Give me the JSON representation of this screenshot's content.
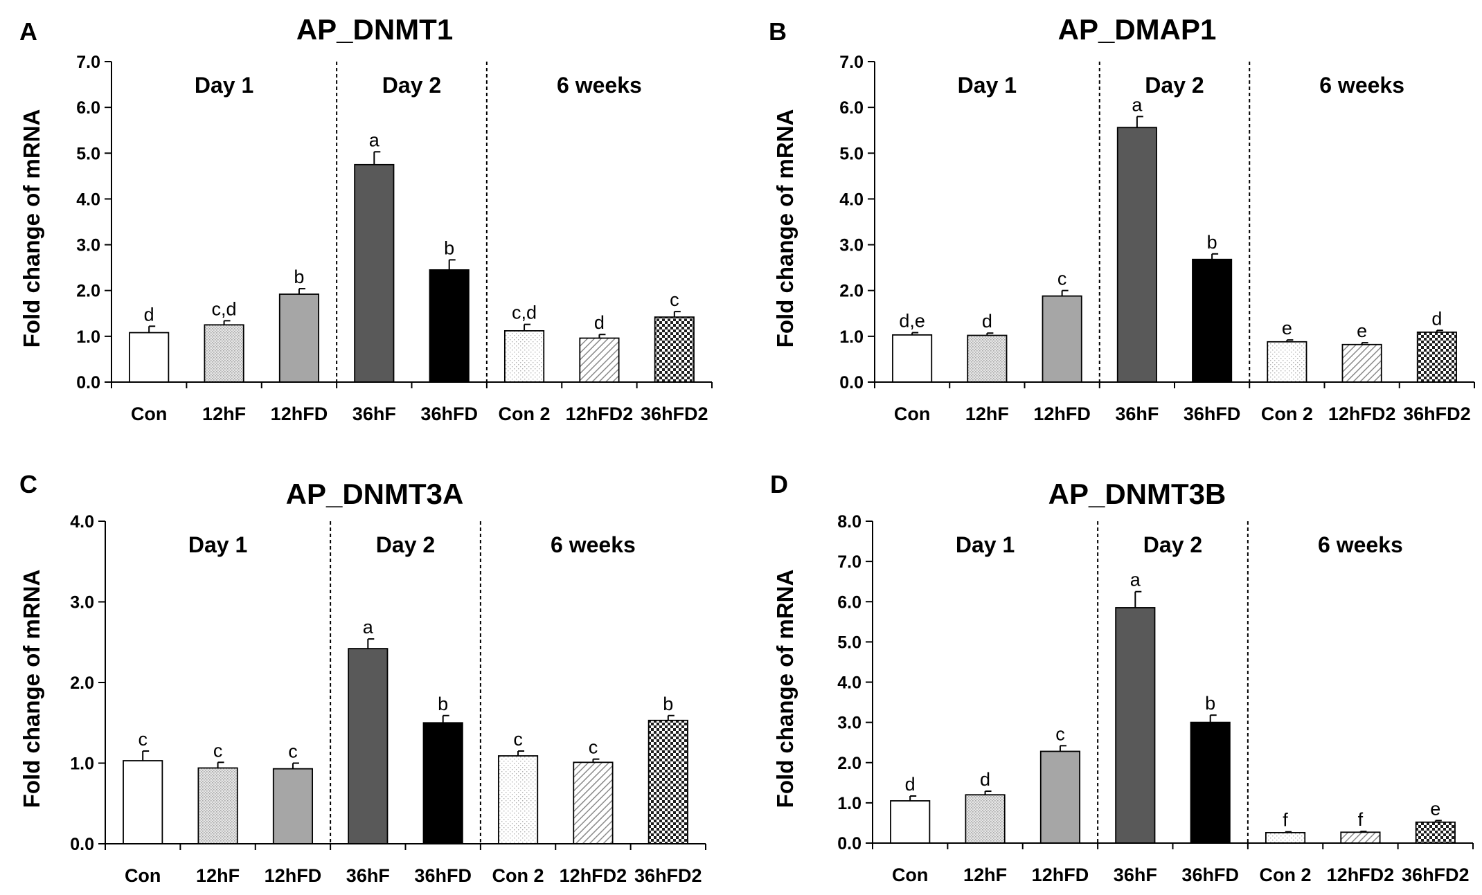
{
  "figure": {
    "categories": [
      "Con",
      "12hF",
      "12hFD",
      "36hF",
      "36hFD",
      "Con 2",
      "12hFD2",
      "36hFD2"
    ],
    "phases": [
      {
        "label": "Day 1",
        "from": 0,
        "to": 2
      },
      {
        "label": "Day 2",
        "from": 3,
        "to": 4
      },
      {
        "label": "6 weeks",
        "from": 5,
        "to": 7
      }
    ],
    "ylabel": "Fold change of mRNA",
    "patterns": [
      "white",
      "light-dots",
      "medium-gray",
      "dark-gray",
      "black",
      "sparse-dots",
      "diagonal-hatch",
      "checker"
    ]
  },
  "chart_data": [
    {
      "type": "bar",
      "panel": "A",
      "title": "AP_DNMT1",
      "ylabel": "Fold change of mRNA",
      "ylim": [
        0,
        7
      ],
      "yticks": [
        0,
        1,
        2,
        3,
        4,
        5,
        6,
        7
      ],
      "ytick_labels": [
        "0.0",
        "1.0",
        "2.0",
        "3.0",
        "4.0",
        "5.0",
        "6.0",
        "7.0"
      ],
      "categories": [
        "Con",
        "12hF",
        "12hFD",
        "36hF",
        "36hFD",
        "Con 2",
        "12hFD2",
        "36hFD2"
      ],
      "values": [
        1.08,
        1.25,
        1.92,
        4.75,
        2.45,
        1.12,
        0.96,
        1.42
      ],
      "errors": [
        0.14,
        0.09,
        0.12,
        0.28,
        0.22,
        0.14,
        0.08,
        0.12
      ],
      "labels": [
        "d",
        "c,d",
        "b",
        "a",
        "b",
        "c,d",
        "d",
        "c"
      ]
    },
    {
      "type": "bar",
      "panel": "B",
      "title": "AP_DMAP1",
      "ylabel": "Fold change of mRNA",
      "ylim": [
        0,
        7
      ],
      "yticks": [
        0,
        1,
        2,
        3,
        4,
        5,
        6,
        7
      ],
      "ytick_labels": [
        "0.0",
        "1.0",
        "2.0",
        "3.0",
        "4.0",
        "5.0",
        "6.0",
        "7.0"
      ],
      "categories": [
        "Con",
        "12hF",
        "12hFD",
        "36hF",
        "36hFD",
        "Con 2",
        "12hFD2",
        "36hFD2"
      ],
      "values": [
        1.03,
        1.02,
        1.88,
        5.56,
        2.68,
        0.88,
        0.82,
        1.09
      ],
      "errors": [
        0.05,
        0.05,
        0.12,
        0.24,
        0.12,
        0.04,
        0.04,
        0.04
      ],
      "labels": [
        "d,e",
        "d",
        "c",
        "a",
        "b",
        "e",
        "e",
        "d"
      ]
    },
    {
      "type": "bar",
      "panel": "C",
      "title": "AP_DNMT3A",
      "ylabel": "Fold change of mRNA",
      "ylim": [
        0,
        4
      ],
      "yticks": [
        0,
        1,
        2,
        3,
        4
      ],
      "ytick_labels": [
        "0.0",
        "1.0",
        "2.0",
        "3.0",
        "4.0"
      ],
      "categories": [
        "Con",
        "12hF",
        "12hFD",
        "36hF",
        "36hFD",
        "Con 2",
        "12hFD2",
        "36hFD2"
      ],
      "values": [
        1.03,
        0.94,
        0.93,
        2.42,
        1.5,
        1.09,
        1.01,
        1.53
      ],
      "errors": [
        0.12,
        0.07,
        0.07,
        0.12,
        0.09,
        0.06,
        0.04,
        0.06
      ],
      "labels": [
        "c",
        "c",
        "c",
        "a",
        "b",
        "c",
        "c",
        "b"
      ]
    },
    {
      "type": "bar",
      "panel": "D",
      "title": "AP_DNMT3B",
      "ylabel": "Fold change of mRNA",
      "ylim": [
        0,
        8
      ],
      "yticks": [
        0,
        1,
        2,
        3,
        4,
        5,
        6,
        7,
        8
      ],
      "ytick_labels": [
        "0.0",
        "1.0",
        "2.0",
        "3.0",
        "4.0",
        "5.0",
        "6.0",
        "7.0",
        "8.0"
      ],
      "categories": [
        "Con",
        "12hF",
        "12hFD",
        "36hF",
        "36hFD",
        "Con 2",
        "12hFD2",
        "36hFD2"
      ],
      "values": [
        1.05,
        1.2,
        2.28,
        5.85,
        3.0,
        0.26,
        0.27,
        0.52
      ],
      "errors": [
        0.12,
        0.09,
        0.14,
        0.4,
        0.18,
        0.02,
        0.02,
        0.04
      ],
      "labels": [
        "d",
        "d",
        "c",
        "a",
        "b",
        "f",
        "f",
        "e"
      ]
    }
  ]
}
